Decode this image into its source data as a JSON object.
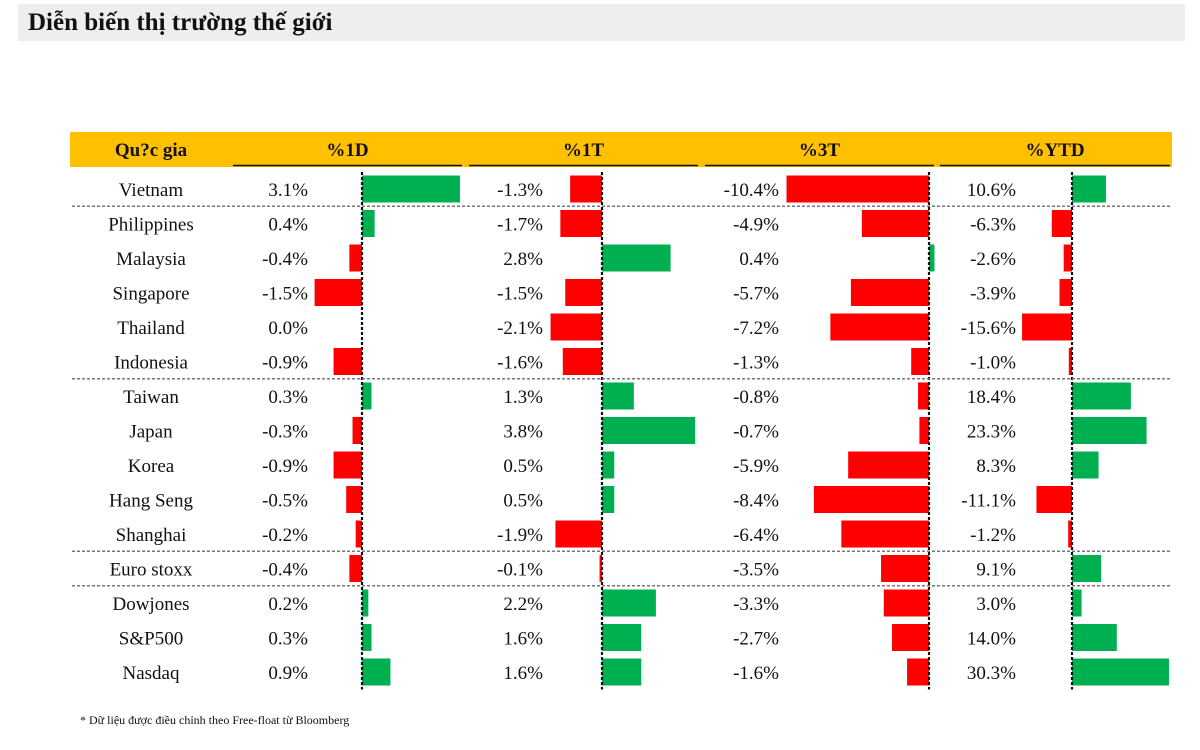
{
  "title": "Diễn biến thị trường thế giới",
  "footnote": "* Dữ liệu được điều chỉnh theo Free-float từ Bloomberg",
  "colors": {
    "header": "#FFC000",
    "positive": "#00B050",
    "negative": "#FF0000",
    "title_bg": "#EEEEEE"
  },
  "chart_data": {
    "type": "table",
    "title": "Diễn biến thị trường thế giới",
    "row_header": "Qu?c gia",
    "columns": [
      "%1D",
      "%1T",
      "%3T",
      "%YTD"
    ],
    "groups": [
      1,
      5,
      5,
      1,
      3
    ],
    "rows": [
      {
        "name": "Vietnam",
        "values": [
          3.1,
          -1.3,
          -10.4,
          10.6
        ],
        "labels": [
          "3.1%",
          "-1.3%",
          "-10.4%",
          "10.6%"
        ]
      },
      {
        "name": "Philippines",
        "values": [
          0.4,
          -1.7,
          -4.9,
          -6.3
        ],
        "labels": [
          "0.4%",
          "-1.7%",
          "-4.9%",
          "-6.3%"
        ]
      },
      {
        "name": "Malaysia",
        "values": [
          -0.4,
          2.8,
          0.4,
          -2.6
        ],
        "labels": [
          "-0.4%",
          "2.8%",
          "0.4%",
          "-2.6%"
        ]
      },
      {
        "name": "Singapore",
        "values": [
          -1.5,
          -1.5,
          -5.7,
          -3.9
        ],
        "labels": [
          "-1.5%",
          "-1.5%",
          "-5.7%",
          "-3.9%"
        ]
      },
      {
        "name": "Thailand",
        "values": [
          0.0,
          -2.1,
          -7.2,
          -15.6
        ],
        "labels": [
          "0.0%",
          "-2.1%",
          "-7.2%",
          "-15.6%"
        ]
      },
      {
        "name": "Indonesia",
        "values": [
          -0.9,
          -1.6,
          -1.3,
          -1.0
        ],
        "labels": [
          "-0.9%",
          "-1.6%",
          "-1.3%",
          "-1.0%"
        ]
      },
      {
        "name": "Taiwan",
        "values": [
          0.3,
          1.3,
          -0.8,
          18.4
        ],
        "labels": [
          "0.3%",
          "1.3%",
          "-0.8%",
          "18.4%"
        ]
      },
      {
        "name": "Japan",
        "values": [
          -0.3,
          3.8,
          -0.7,
          23.3
        ],
        "labels": [
          "-0.3%",
          "3.8%",
          "-0.7%",
          "23.3%"
        ]
      },
      {
        "name": "Korea",
        "values": [
          -0.9,
          0.5,
          -5.9,
          8.3
        ],
        "labels": [
          "-0.9%",
          "0.5%",
          "-5.9%",
          "8.3%"
        ]
      },
      {
        "name": "Hang Seng",
        "values": [
          -0.5,
          0.5,
          -8.4,
          -11.1
        ],
        "labels": [
          "-0.5%",
          "0.5%",
          "-8.4%",
          "-11.1%"
        ]
      },
      {
        "name": "Shanghai",
        "values": [
          -0.2,
          -1.9,
          -6.4,
          -1.2
        ],
        "labels": [
          "-0.2%",
          "-1.9%",
          "-6.4%",
          "-1.2%"
        ]
      },
      {
        "name": "Euro stoxx",
        "values": [
          -0.4,
          -0.1,
          -3.5,
          9.1
        ],
        "labels": [
          "-0.4%",
          "-0.1%",
          "-3.5%",
          "9.1%"
        ]
      },
      {
        "name": "Dowjones",
        "values": [
          0.2,
          2.2,
          -3.3,
          3.0
        ],
        "labels": [
          "0.2%",
          "2.2%",
          "-3.3%",
          "3.0%"
        ]
      },
      {
        "name": "S&P500",
        "values": [
          0.3,
          1.6,
          -2.7,
          14.0
        ],
        "labels": [
          "0.3%",
          "1.6%",
          "-2.7%",
          "14.0%"
        ]
      },
      {
        "name": "Nasdaq",
        "values": [
          0.9,
          1.6,
          -1.6,
          30.3
        ],
        "labels": [
          "0.9%",
          "1.6%",
          "-1.6%",
          "30.3%"
        ]
      }
    ]
  }
}
